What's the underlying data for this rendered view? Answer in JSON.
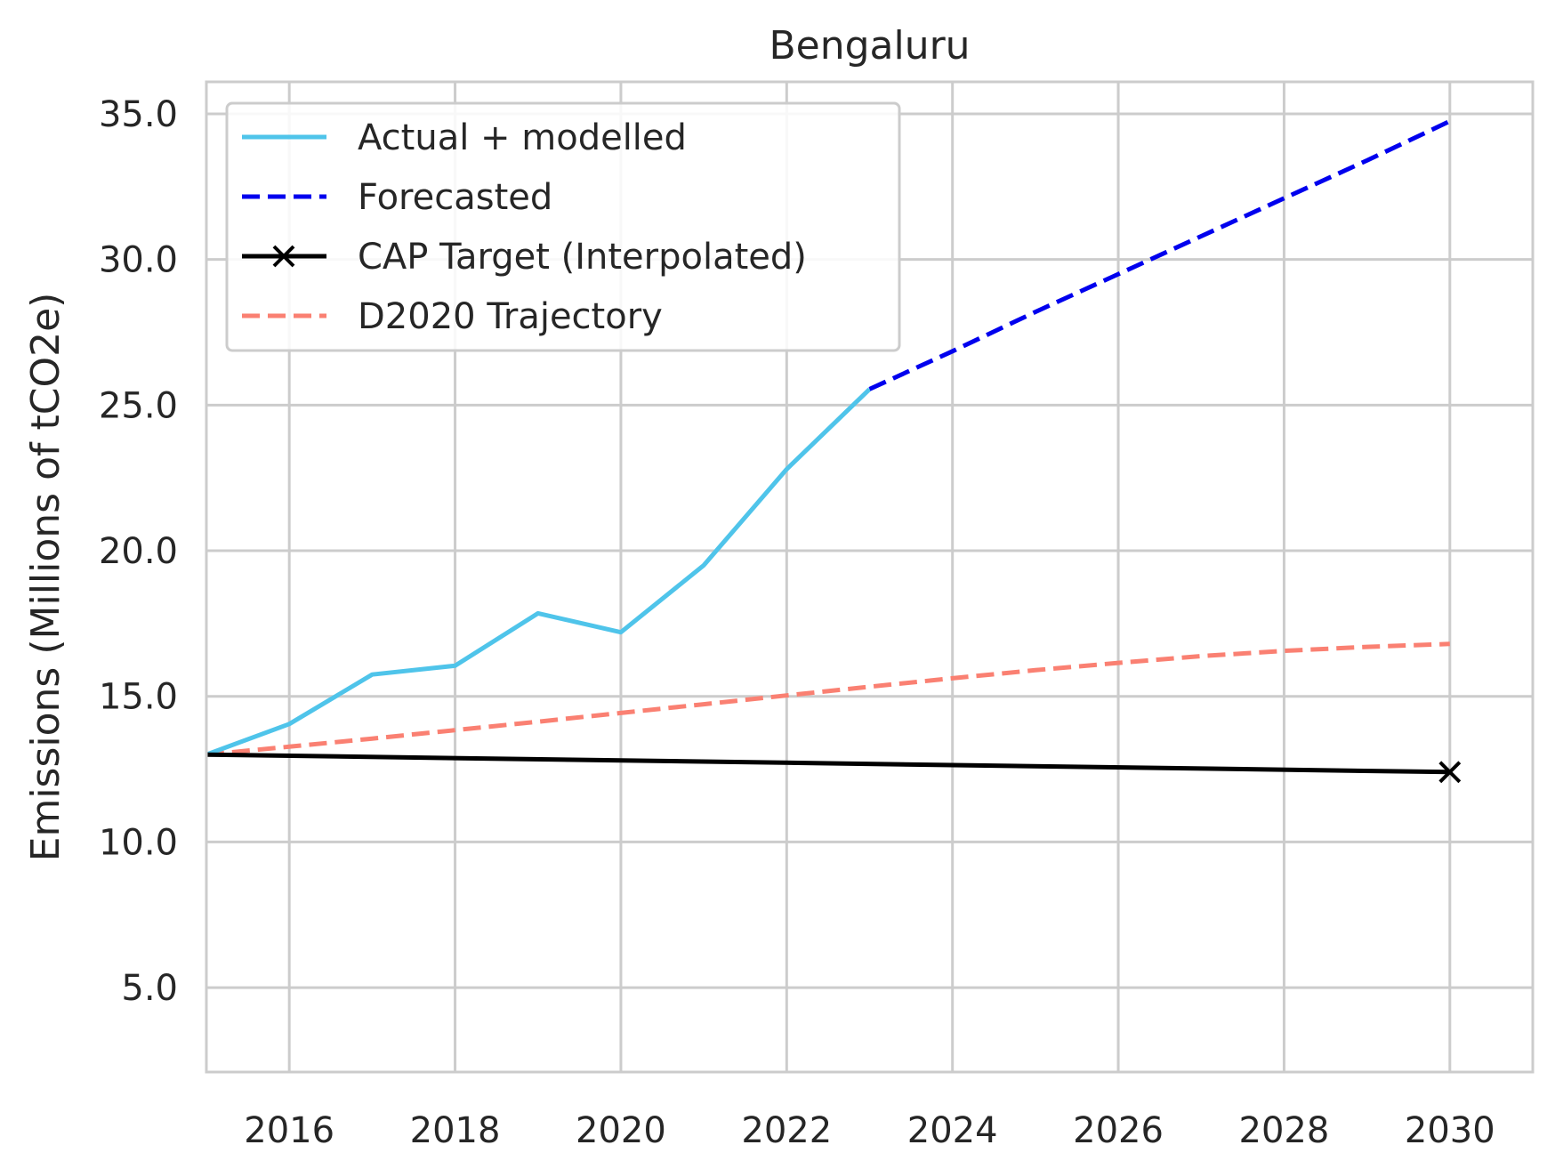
{
  "chart_data": {
    "type": "line",
    "title": "Bengaluru",
    "xlabel": "",
    "ylabel": "Emissions (Millions of tCO2e)",
    "xlim": [
      2015,
      2031
    ],
    "ylim": [
      2.1,
      36.1
    ],
    "xticks": [
      2016,
      2018,
      2020,
      2022,
      2024,
      2026,
      2028,
      2030
    ],
    "yticks": [
      5.0,
      10.0,
      15.0,
      20.0,
      25.0,
      30.0,
      35.0
    ],
    "grid": true,
    "legend_position": "top-left",
    "series": [
      {
        "name": "Actual + modelled",
        "color": "#4fc4ea",
        "style": "solid",
        "x": [
          2015,
          2016,
          2017,
          2018,
          2019,
          2020,
          2021,
          2022,
          2023
        ],
        "y": [
          13.0,
          14.05,
          15.75,
          16.05,
          17.85,
          17.2,
          19.5,
          22.8,
          25.55
        ]
      },
      {
        "name": "Forecasted",
        "color": "#0000ee",
        "style": "dashed",
        "x": [
          2023,
          2024,
          2025,
          2026,
          2027,
          2028,
          2029,
          2030
        ],
        "y": [
          25.55,
          26.85,
          28.2,
          29.5,
          30.8,
          32.1,
          33.4,
          34.75
        ]
      },
      {
        "name": "CAP Target (Interpolated)",
        "color": "#000000",
        "style": "solid",
        "marker": "x",
        "x": [
          2015,
          2030
        ],
        "y": [
          13.0,
          12.4
        ]
      },
      {
        "name": "D2020 Trajectory",
        "color": "#fa8072",
        "style": "dashed",
        "x": [
          2015,
          2016,
          2017,
          2018,
          2019,
          2020,
          2021,
          2022,
          2023,
          2024,
          2025,
          2026,
          2027,
          2028,
          2029,
          2030
        ],
        "y": [
          13.0,
          13.27,
          13.55,
          13.84,
          14.13,
          14.43,
          14.73,
          15.03,
          15.33,
          15.62,
          15.9,
          16.15,
          16.38,
          16.56,
          16.7,
          16.8
        ]
      }
    ]
  }
}
